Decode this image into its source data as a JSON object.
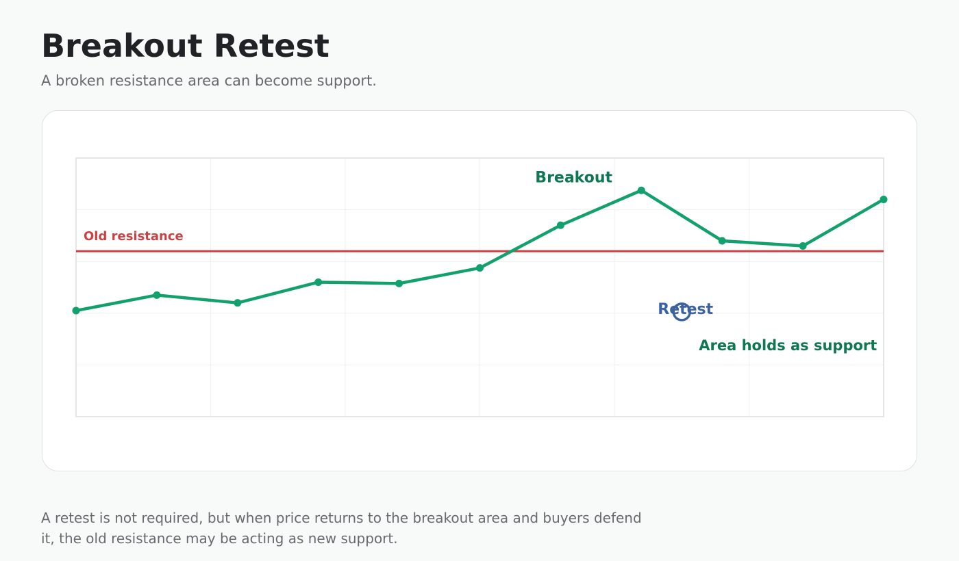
{
  "page": {
    "title": "Breakout Retest",
    "subtitle": "A broken resistance area can become support.",
    "note": "A retest is not required, but when price returns to the breakout area and buyers defend it, the old resistance may be acting as new support."
  },
  "chart_data": {
    "type": "line",
    "title": "",
    "xlabel": "",
    "ylabel": "",
    "x": [
      0,
      1,
      2,
      3,
      4,
      5,
      6,
      7,
      8,
      9,
      10
    ],
    "series": [
      {
        "values": [
          98.6,
          99.2,
          98.9,
          99.7,
          99.65,
          100.25,
          101.9,
          103.25,
          101.3,
          101.1,
          102.9
        ]
      }
    ],
    "xlim": [
      0,
      10
    ],
    "ylim": [
      94.5,
      104.5
    ],
    "resistance": {
      "value": 100.9,
      "label": "Old resistance"
    },
    "annotations": [
      {
        "id": "breakout",
        "text": "Breakout"
      },
      {
        "id": "retest",
        "text": "Retest"
      },
      {
        "id": "support",
        "text": "Area holds as support"
      }
    ],
    "grid": true,
    "legend": "none",
    "colors": {
      "price": "#12a06c",
      "resistance": "#cc3f43",
      "breakout_label": "#0f7752",
      "retest": "#3d639e",
      "support_label": "#0f7752",
      "grid": "#eef0f1",
      "frame": "#dbdedf"
    }
  }
}
